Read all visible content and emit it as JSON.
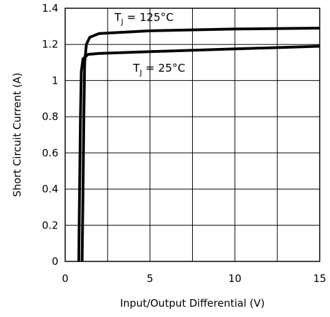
{
  "chart_data": {
    "type": "line",
    "title": "",
    "xlabel": "Input/Output Differential (V)",
    "ylabel": "Short Circuit Current (A)",
    "xlim": [
      0,
      15
    ],
    "ylim": [
      0,
      1.4
    ],
    "x_ticks": [
      0,
      5,
      10,
      15
    ],
    "x_tick_labels": [
      "0",
      "5",
      "10",
      "15"
    ],
    "y_ticks": [
      0,
      0.2,
      0.4,
      0.6,
      0.8,
      1.0,
      1.2,
      1.4
    ],
    "y_tick_labels": [
      "0",
      "0.2",
      "0.4",
      "0.6",
      "0.8",
      "1",
      "1.2",
      "1.4"
    ],
    "grid": true,
    "series": [
      {
        "name": "TJ = 125°C",
        "label_main": "T",
        "label_sub": "J",
        "label_rest": " = 125°C",
        "color": "#000000",
        "points": [
          [
            1.0,
            0.0
          ],
          [
            1.05,
            0.4
          ],
          [
            1.1,
            0.8
          ],
          [
            1.15,
            1.1
          ],
          [
            1.25,
            1.2
          ],
          [
            1.45,
            1.24
          ],
          [
            2.0,
            1.26
          ],
          [
            5.0,
            1.275
          ],
          [
            10.0,
            1.285
          ],
          [
            15.0,
            1.29
          ]
        ]
      },
      {
        "name": "TJ = 25°C",
        "label_main": "T",
        "label_sub": "J",
        "label_rest": " = 25°C",
        "color": "#000000",
        "points": [
          [
            0.8,
            0.0
          ],
          [
            0.85,
            0.4
          ],
          [
            0.9,
            0.8
          ],
          [
            0.95,
            1.05
          ],
          [
            1.05,
            1.12
          ],
          [
            1.35,
            1.145
          ],
          [
            2.0,
            1.15
          ],
          [
            5.0,
            1.16
          ],
          [
            10.0,
            1.175
          ],
          [
            15.0,
            1.19
          ]
        ]
      }
    ],
    "annotations": [
      {
        "series": 0,
        "x": 2.9,
        "y": 1.33
      },
      {
        "series": 1,
        "x": 4.0,
        "y": 1.05
      }
    ]
  }
}
